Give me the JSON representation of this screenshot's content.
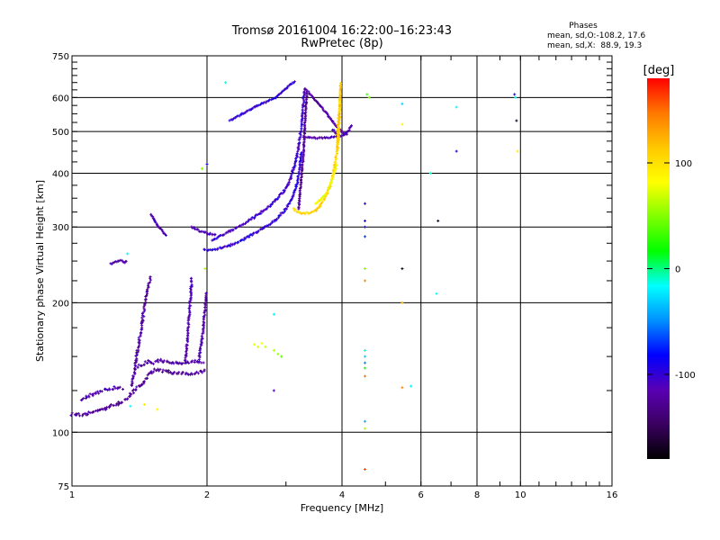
{
  "chart_data": {
    "type": "scatter",
    "title": "Tromsø 20161004 16:22:00–16:23:43",
    "subtitle": "RwPretec (8p)",
    "xlabel": "Frequency [MHz]",
    "ylabel": "Stationary phase Virtual Height [km]",
    "xscale": "log",
    "yscale": "log",
    "xlim": [
      1,
      16
    ],
    "ylim": [
      75,
      750
    ],
    "x_ticks": [
      {
        "value": 1,
        "label": "1"
      },
      {
        "value": 2,
        "label": "2"
      },
      {
        "value": 4,
        "label": "4"
      },
      {
        "value": 6,
        "label": "6"
      },
      {
        "value": 8,
        "label": "8"
      },
      {
        "value": 10,
        "label": "10"
      },
      {
        "value": 16,
        "label": "16"
      }
    ],
    "x_gridlines": [
      2,
      4,
      6,
      8,
      10
    ],
    "y_ticks": [
      {
        "value": 75,
        "label": "75"
      },
      {
        "value": 100,
        "label": "100"
      },
      {
        "value": 200,
        "label": "200"
      },
      {
        "value": 300,
        "label": "300"
      },
      {
        "value": 400,
        "label": "400"
      },
      {
        "value": 500,
        "label": "500"
      },
      {
        "value": 600,
        "label": "600"
      },
      {
        "value": 750,
        "label": "750"
      }
    ],
    "y_gridlines": [
      100,
      200,
      300,
      400,
      500,
      600
    ],
    "grid": true,
    "stats": {
      "title": "Phases",
      "line_o": "mean, sd,O:-108.2, 17.6",
      "line_x": "mean, sd,X:  88.9, 19.3"
    },
    "colorbar": {
      "label": "[deg]",
      "ticks": [
        {
          "value": 100,
          "label": "100"
        },
        {
          "value": 0,
          "label": "0"
        },
        {
          "value": -100,
          "label": "-100"
        }
      ],
      "range": [
        -180,
        180
      ],
      "colors": [
        "#000000",
        "#3a0060",
        "#5a00b4",
        "#0000ff",
        "#0090ff",
        "#00ffff",
        "#00ff00",
        "#7fff00",
        "#ffff00",
        "#ffc800",
        "#ff7800",
        "#ff0000"
      ]
    },
    "traces": [
      {
        "x": [
          1.0,
          1.05,
          1.1,
          1.15,
          1.2,
          1.25,
          1.3,
          1.33,
          1.36,
          1.39,
          1.41,
          1.43,
          1.45,
          1.48,
          1.52,
          1.56,
          1.6,
          1.65,
          1.7,
          1.75,
          1.8,
          1.85,
          1.9,
          1.95,
          1.98
        ],
        "y": [
          110,
          110,
          111,
          112,
          114,
          116,
          118,
          120,
          123,
          126,
          128,
          129,
          132,
          136,
          139,
          140,
          139,
          138,
          137,
          137,
          137,
          137,
          138,
          138,
          139
        ],
        "phase": -125,
        "jitter": 2.5
      },
      {
        "x": [
          1.05,
          1.1,
          1.15,
          1.2,
          1.25,
          1.3
        ],
        "y": [
          119,
          122,
          124,
          126,
          127,
          126
        ],
        "phase": -115,
        "jitter": 2.5
      },
      {
        "x": [
          1.36,
          1.37,
          1.38,
          1.39,
          1.4,
          1.41,
          1.42,
          1.43,
          1.44,
          1.45,
          1.46,
          1.47,
          1.48,
          1.5
        ],
        "y": [
          128,
          133,
          140,
          148,
          155,
          162,
          170,
          178,
          186,
          195,
          202,
          210,
          218,
          230
        ],
        "phase": -122,
        "jitter": 2
      },
      {
        "x": [
          1.4,
          1.44,
          1.48,
          1.52,
          1.56,
          1.62,
          1.68,
          1.74,
          1.8,
          1.86,
          1.92,
          1.97
        ],
        "y": [
          142,
          144,
          146,
          145,
          147,
          146,
          145,
          144,
          145,
          146,
          145,
          146
        ],
        "phase": -120,
        "jitter": 2.5
      },
      {
        "x": [
          1.79,
          1.8,
          1.81,
          1.82,
          1.83,
          1.84,
          1.85
        ],
        "y": [
          145,
          155,
          165,
          180,
          195,
          210,
          230
        ],
        "phase": -115,
        "jitter": 1.5
      },
      {
        "x": [
          1.92,
          1.94,
          1.96,
          1.97,
          1.98,
          1.99,
          2.0
        ],
        "y": [
          148,
          160,
          172,
          184,
          196,
          205,
          212
        ],
        "phase": -118,
        "jitter": 1.5
      },
      {
        "x": [
          1.22,
          1.25,
          1.28,
          1.31,
          1.33
        ],
        "y": [
          246,
          249,
          251,
          248,
          250
        ],
        "phase": -118,
        "jitter": 1
      },
      {
        "x": [
          1.5,
          1.53,
          1.56,
          1.59,
          1.61,
          1.63
        ],
        "y": [
          320,
          310,
          300,
          293,
          288,
          285
        ],
        "phase": -112,
        "jitter": 1
      },
      {
        "x": [
          1.85,
          1.9,
          1.95,
          2.0,
          2.05,
          2.1
        ],
        "y": [
          300,
          296,
          292,
          290,
          289,
          288
        ],
        "phase": -112,
        "jitter": 1.5
      },
      {
        "x": [
          1.97,
          2.05,
          2.15,
          2.25,
          2.4,
          2.55,
          2.7,
          2.85,
          3.0,
          3.1,
          3.18,
          3.22,
          3.25
        ],
        "y": [
          265,
          266,
          268,
          272,
          280,
          290,
          300,
          312,
          330,
          350,
          380,
          410,
          450
        ],
        "phase": -100,
        "jitter": 1.5
      },
      {
        "x": [
          2.05,
          2.2,
          2.35,
          2.5,
          2.65,
          2.8,
          2.95,
          3.05,
          3.12,
          3.18,
          3.22,
          3.25,
          3.27,
          3.29,
          3.3
        ],
        "y": [
          280,
          290,
          300,
          312,
          325,
          340,
          360,
          380,
          410,
          440,
          480,
          520,
          560,
          600,
          630
        ],
        "phase": -105,
        "jitter": 1.5
      },
      {
        "x": [
          2.25,
          2.4,
          2.55,
          2.7,
          2.85,
          2.95,
          3.05,
          3.15
        ],
        "y": [
          530,
          550,
          570,
          585,
          600,
          620,
          640,
          655
        ],
        "phase": -100,
        "jitter": 1
      },
      {
        "x": [
          3.2,
          3.24,
          3.28,
          3.3,
          3.32,
          3.34
        ],
        "y": [
          330,
          380,
          440,
          500,
          560,
          620
        ],
        "phase": -125,
        "jitter": 1
      },
      {
        "x": [
          3.3,
          3.35,
          3.45,
          3.55,
          3.65,
          3.75,
          3.85,
          3.95,
          4.05,
          4.12
        ],
        "y": [
          630,
          620,
          600,
          580,
          560,
          540,
          520,
          505,
          495,
          490
        ],
        "phase": -125,
        "jitter": 1
      },
      {
        "x": [
          3.3,
          3.4,
          3.5,
          3.6,
          3.7,
          3.8,
          3.9
        ],
        "y": [
          485,
          484,
          483,
          483,
          484,
          485,
          486
        ],
        "phase": -115,
        "jitter": 1
      },
      {
        "x": [
          3.82,
          3.86,
          3.9,
          3.95,
          4.02,
          4.08,
          4.15,
          4.2
        ],
        "y": [
          505,
          498,
          492,
          488,
          490,
          495,
          505,
          520
        ],
        "phase": -110,
        "jitter": 1
      },
      {
        "x": [
          3.12,
          3.2,
          3.28,
          3.36,
          3.44,
          3.52,
          3.6,
          3.68,
          3.76,
          3.82,
          3.86,
          3.9,
          3.93,
          3.95,
          3.96
        ],
        "y": [
          330,
          325,
          323,
          323,
          325,
          330,
          340,
          355,
          372,
          395,
          420,
          450,
          490,
          540,
          600
        ],
        "phase": 105,
        "jitter": 1.5
      },
      {
        "x": [
          3.5,
          3.6,
          3.7,
          3.78,
          3.84,
          3.9
        ],
        "y": [
          340,
          350,
          360,
          380,
          400,
          420
        ],
        "phase": 85,
        "jitter": 1
      },
      {
        "x": [
          3.9,
          3.91,
          3.92,
          3.93,
          3.95,
          3.96,
          3.97,
          3.98
        ],
        "y": [
          450,
          480,
          510,
          540,
          570,
          600,
          630,
          650
        ],
        "phase": 110,
        "jitter": 1
      }
    ],
    "points": [
      {
        "x": 2.55,
        "y": 160,
        "phase": 75
      },
      {
        "x": 2.6,
        "y": 158,
        "phase": 70
      },
      {
        "x": 2.65,
        "y": 161,
        "phase": 80
      },
      {
        "x": 2.7,
        "y": 158,
        "phase": 65
      },
      {
        "x": 2.82,
        "y": 155,
        "phase": 60
      },
      {
        "x": 2.88,
        "y": 152,
        "phase": 55
      },
      {
        "x": 2.93,
        "y": 150,
        "phase": 40
      },
      {
        "x": 2.82,
        "y": 188,
        "phase": -20
      },
      {
        "x": 2.82,
        "y": 125,
        "phase": -110
      },
      {
        "x": 1.45,
        "y": 116,
        "phase": 95
      },
      {
        "x": 1.35,
        "y": 115,
        "phase": -20
      },
      {
        "x": 1.55,
        "y": 113,
        "phase": 90
      },
      {
        "x": 1.95,
        "y": 410,
        "phase": 50
      },
      {
        "x": 2.0,
        "y": 420,
        "phase": -80
      },
      {
        "x": 2.2,
        "y": 650,
        "phase": -10
      },
      {
        "x": 1.98,
        "y": 240,
        "phase": 60
      },
      {
        "x": 1.33,
        "y": 260,
        "phase": -20
      },
      {
        "x": 4.55,
        "y": 610,
        "phase": 30
      },
      {
        "x": 4.6,
        "y": 600,
        "phase": 50
      },
      {
        "x": 4.5,
        "y": 340,
        "phase": -100
      },
      {
        "x": 4.5,
        "y": 310,
        "phase": -90
      },
      {
        "x": 4.5,
        "y": 300,
        "phase": -100
      },
      {
        "x": 4.5,
        "y": 285,
        "phase": -70
      },
      {
        "x": 4.5,
        "y": 240,
        "phase": 50
      },
      {
        "x": 4.5,
        "y": 225,
        "phase": 140
      },
      {
        "x": 4.5,
        "y": 155,
        "phase": -10
      },
      {
        "x": 4.5,
        "y": 150,
        "phase": -30
      },
      {
        "x": 4.5,
        "y": 145,
        "phase": -50
      },
      {
        "x": 4.5,
        "y": 141,
        "phase": 20
      },
      {
        "x": 4.5,
        "y": 135,
        "phase": 150
      },
      {
        "x": 4.5,
        "y": 106,
        "phase": -40
      },
      {
        "x": 4.5,
        "y": 102,
        "phase": 60
      },
      {
        "x": 4.5,
        "y": 82,
        "phase": 160
      },
      {
        "x": 5.45,
        "y": 580,
        "phase": -30
      },
      {
        "x": 5.45,
        "y": 520,
        "phase": 90
      },
      {
        "x": 5.45,
        "y": 240,
        "phase": -170
      },
      {
        "x": 5.45,
        "y": 200,
        "phase": 120
      },
      {
        "x": 5.45,
        "y": 127,
        "phase": 140
      },
      {
        "x": 5.7,
        "y": 128,
        "phase": -20
      },
      {
        "x": 6.3,
        "y": 400,
        "phase": -10
      },
      {
        "x": 6.55,
        "y": 310,
        "phase": -170
      },
      {
        "x": 6.5,
        "y": 210,
        "phase": -20
      },
      {
        "x": 7.2,
        "y": 570,
        "phase": -20
      },
      {
        "x": 7.2,
        "y": 450,
        "phase": -90
      },
      {
        "x": 9.7,
        "y": 610,
        "phase": -90
      },
      {
        "x": 9.75,
        "y": 600,
        "phase": -20
      },
      {
        "x": 9.8,
        "y": 530,
        "phase": -170
      },
      {
        "x": 9.85,
        "y": 450,
        "phase": 95
      }
    ]
  }
}
